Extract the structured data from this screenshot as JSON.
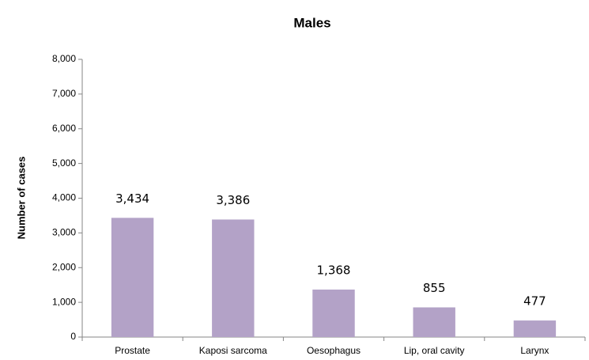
{
  "chart_data": {
    "type": "bar",
    "title": "Males",
    "y_label": "Number of cases",
    "categories": [
      "Prostate",
      "Kaposi sarcoma",
      "Oesophagus",
      "Lip, oral cavity",
      "Larynx"
    ],
    "values": [
      3434,
      3386,
      1368,
      855,
      477
    ],
    "value_labels": [
      "3,434",
      "3,386",
      "1,368",
      "855",
      "477"
    ],
    "color": "#b3a2c7",
    "ylim": [
      0,
      8000
    ],
    "yticks": [
      0,
      {
        "value": 1000,
        "label": "1,000"
      },
      {
        "value": 2000,
        "label": "2,000"
      },
      {
        "value": 3000,
        "label": "3,000"
      },
      {
        "value": 4000,
        "label": "4,000"
      },
      {
        "value": 5000,
        "label": "5,000"
      },
      {
        "value": 6000,
        "label": "6,000"
      },
      {
        "value": 7000,
        "label": "7,000"
      },
      {
        "value": 8000,
        "label": "8,000"
      }
    ],
    "grid": false
  }
}
